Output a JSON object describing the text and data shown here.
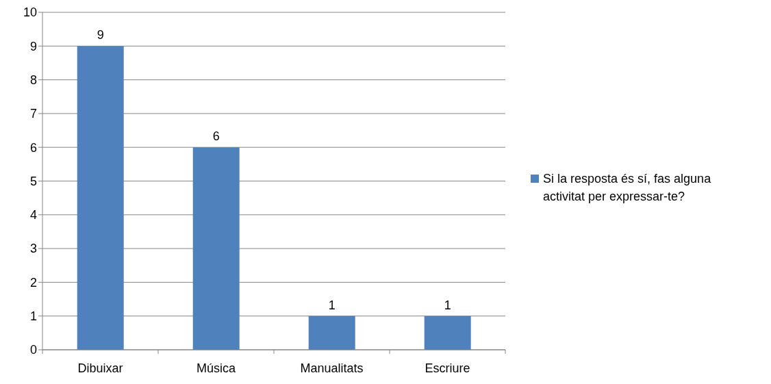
{
  "chart_data": {
    "type": "bar",
    "categories": [
      "Dibuixar",
      "Música",
      "Manualitats",
      "Escriure"
    ],
    "series": [
      {
        "name": "Si la resposta és sí, fas alguna activitat per expressar-te?",
        "color": "#4f81bd",
        "values": [
          9,
          6,
          1,
          1
        ]
      }
    ],
    "ylim": [
      0,
      10
    ],
    "yticks": [
      0,
      1,
      2,
      3,
      4,
      5,
      6,
      7,
      8,
      9,
      10
    ],
    "grid": "y",
    "legend": "right",
    "data_labels": true
  }
}
